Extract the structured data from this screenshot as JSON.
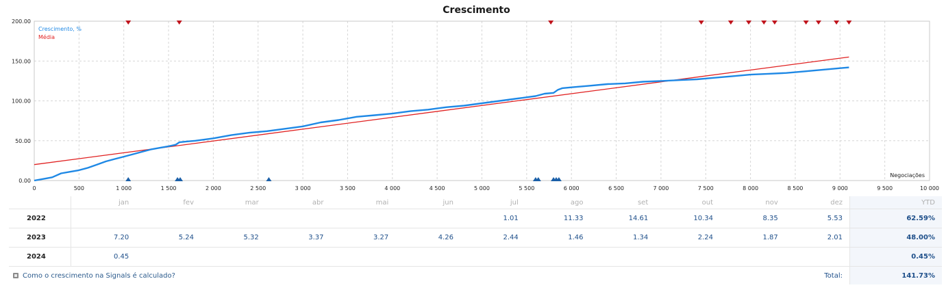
{
  "chart_data": {
    "type": "line",
    "title": "Crescimento",
    "xlabel": "Negociações",
    "ylabel": "",
    "xlim": [
      0,
      10000
    ],
    "ylim": [
      0,
      200
    ],
    "x_ticks": [
      "0",
      "500",
      "1 000",
      "1 500",
      "2 000",
      "2 500",
      "3 000",
      "3 500",
      "4 000",
      "4 500",
      "5 000",
      "5 500",
      "6 000",
      "6 500",
      "7 000",
      "7 500",
      "8 000",
      "8 500",
      "9 000",
      "9 500",
      "10 000"
    ],
    "y_ticks": [
      "0.00",
      "50.00",
      "100.00",
      "150.00",
      "200.00"
    ],
    "grid": true,
    "legend_placement": "top-left",
    "series": [
      {
        "name": "Crescimento, %",
        "color": "#1e88e5",
        "x": [
          0,
          100,
          200,
          300,
          400,
          500,
          600,
          700,
          800,
          900,
          1000,
          1100,
          1200,
          1300,
          1400,
          1500,
          1580,
          1620,
          1700,
          1800,
          2000,
          2200,
          2400,
          2600,
          2800,
          3000,
          3200,
          3400,
          3600,
          3800,
          4000,
          4200,
          4400,
          4600,
          4800,
          5000,
          5200,
          5400,
          5600,
          5700,
          5800,
          5850,
          5900,
          6000,
          6200,
          6400,
          6600,
          6800,
          7000,
          7200,
          7400,
          7600,
          7800,
          8000,
          8200,
          8400,
          8600,
          8800,
          9000,
          9100
        ],
        "y": [
          0,
          2,
          4,
          9,
          11,
          13,
          16,
          20,
          24,
          27,
          30,
          33,
          36,
          39,
          41,
          43,
          45,
          48,
          49,
          50,
          53,
          57,
          60,
          62,
          65,
          68,
          73,
          76,
          80,
          82,
          84,
          87,
          89,
          92,
          94,
          97,
          100,
          103,
          106,
          109,
          110,
          114,
          116,
          117,
          119,
          121,
          122,
          124,
          125,
          126,
          127,
          129,
          131,
          133,
          134,
          135,
          137,
          139,
          141,
          142
        ]
      },
      {
        "name": "Média",
        "color": "#e02020",
        "x": [
          0,
          9100
        ],
        "y": [
          20,
          155
        ]
      }
    ],
    "markers_top": [
      1050,
      1620,
      5770,
      7450,
      7780,
      7980,
      8150,
      8270,
      8620,
      8760,
      8960,
      9100
    ],
    "markers_bottom": [
      1050,
      1600,
      1630,
      2620,
      5600,
      5630,
      5800,
      5830,
      5860
    ]
  },
  "table": {
    "months": [
      "jan",
      "fev",
      "mar",
      "abr",
      "mai",
      "jun",
      "jul",
      "ago",
      "set",
      "out",
      "nov",
      "dez"
    ],
    "ytd_label": "YTD",
    "rows": [
      {
        "year": "2022",
        "values": [
          "",
          "",
          "",
          "",
          "",
          "",
          "1.01",
          "11.33",
          "14.61",
          "10.34",
          "8.35",
          "5.53"
        ],
        "ytd": "62.59%"
      },
      {
        "year": "2023",
        "values": [
          "7.20",
          "5.24",
          "5.32",
          "3.37",
          "3.27",
          "4.26",
          "2.44",
          "1.46",
          "1.34",
          "2.24",
          "1.87",
          "2.01"
        ],
        "ytd": "48.00%"
      },
      {
        "year": "2024",
        "values": [
          "0.45",
          "",
          "",
          "",
          "",
          "",
          "",
          "",
          "",
          "",
          "",
          ""
        ],
        "ytd": "0.45%"
      }
    ],
    "help_link": "Como o crescimento na Signals é calculado?",
    "total_label": "Total:",
    "total_value": "141.73%"
  }
}
